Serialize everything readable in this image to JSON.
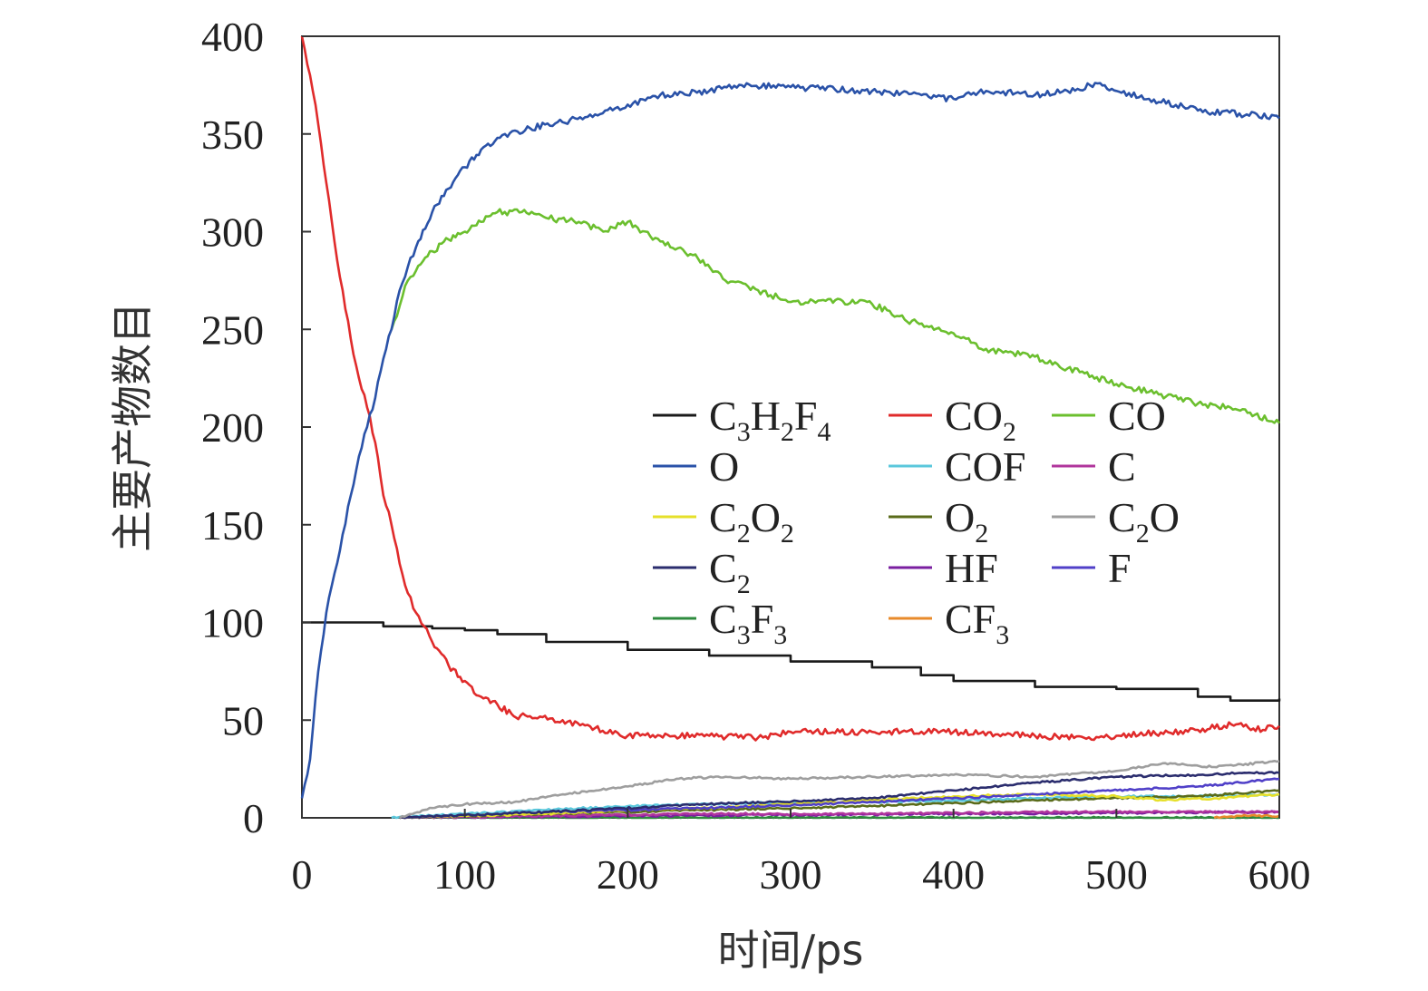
{
  "chart_data": {
    "type": "line",
    "xlabel": "时间/ps",
    "ylabel": "主要产物数目",
    "xlim": [
      0,
      600
    ],
    "ylim": [
      0,
      400
    ],
    "xticks": [
      "0",
      "100",
      "200",
      "300",
      "400",
      "500",
      "600"
    ],
    "yticks": [
      "0",
      "50",
      "100",
      "150",
      "200",
      "250",
      "300",
      "350",
      "400"
    ],
    "grid": false,
    "legend_placement": "center-right",
    "series": [
      {
        "name": "C3H2F4",
        "label_parts": [
          [
            "C",
            ""
          ],
          [
            "3",
            "sub"
          ],
          [
            "H",
            ""
          ],
          [
            "2",
            "sub"
          ],
          [
            "F",
            ""
          ],
          [
            "4",
            "sub"
          ]
        ],
        "color": "#1a1a1a",
        "step": true,
        "x": [
          0,
          20,
          50,
          80,
          100,
          120,
          150,
          200,
          250,
          300,
          350,
          380,
          400,
          450,
          500,
          550,
          570,
          600
        ],
        "y": [
          100,
          100,
          98,
          97,
          96,
          94,
          90,
          86,
          83,
          80,
          77,
          73,
          70,
          67,
          66,
          62,
          60,
          61
        ]
      },
      {
        "name": "CO2",
        "label_parts": [
          [
            "CO",
            ""
          ],
          [
            "2",
            "sub"
          ]
        ],
        "color": "#e02b2b",
        "x": [
          0,
          5,
          10,
          15,
          20,
          25,
          30,
          35,
          40,
          45,
          50,
          55,
          60,
          65,
          70,
          75,
          80,
          90,
          100,
          110,
          120,
          130,
          140,
          160,
          180,
          200,
          220,
          250,
          280,
          300,
          350,
          400,
          450,
          480,
          500,
          550,
          575,
          590,
          600
        ],
        "y": [
          400,
          380,
          355,
          325,
          295,
          270,
          245,
          225,
          210,
          192,
          165,
          150,
          130,
          115,
          105,
          98,
          90,
          78,
          70,
          62,
          58,
          52,
          52,
          50,
          46,
          42,
          42,
          42,
          41,
          44,
          44,
          44,
          42,
          41,
          42,
          45,
          48,
          45,
          47
        ]
      },
      {
        "name": "CO",
        "label_parts": [
          [
            "CO",
            ""
          ]
        ],
        "color": "#6bbf2e",
        "x": [
          55,
          60,
          65,
          70,
          80,
          90,
          100,
          110,
          120,
          135,
          150,
          170,
          185,
          200,
          220,
          240,
          260,
          280,
          300,
          320,
          350,
          370,
          400,
          420,
          450,
          470,
          500,
          520,
          550,
          570,
          600
        ],
        "y": [
          250,
          262,
          275,
          280,
          290,
          296,
          300,
          305,
          310,
          310,
          307,
          305,
          300,
          305,
          295,
          288,
          275,
          270,
          264,
          265,
          263,
          255,
          248,
          240,
          236,
          230,
          222,
          218,
          212,
          210,
          202
        ]
      },
      {
        "name": "O",
        "label_parts": [
          [
            "O",
            ""
          ]
        ],
        "color": "#2a52a8",
        "x": [
          0,
          5,
          10,
          15,
          20,
          25,
          30,
          35,
          40,
          45,
          50,
          55,
          60,
          65,
          70,
          80,
          90,
          100,
          110,
          120,
          140,
          160,
          180,
          200,
          220,
          250,
          270,
          300,
          350,
          400,
          420,
          450,
          470,
          490,
          500,
          520,
          550,
          580,
          600
        ],
        "y": [
          10,
          30,
          75,
          105,
          125,
          145,
          165,
          185,
          200,
          215,
          235,
          250,
          270,
          282,
          292,
          310,
          322,
          333,
          342,
          348,
          353,
          356,
          360,
          365,
          370,
          372,
          375,
          374,
          372,
          368,
          372,
          370,
          372,
          376,
          372,
          368,
          362,
          360,
          358
        ]
      },
      {
        "name": "COF",
        "label_parts": [
          [
            "COF",
            ""
          ]
        ],
        "color": "#5bc8dc",
        "x": [
          55,
          100,
          150,
          200,
          250,
          300,
          350,
          400,
          450,
          500,
          550,
          600
        ],
        "y": [
          0,
          2,
          4,
          6,
          7,
          8,
          8,
          9,
          10,
          11,
          11,
          12
        ]
      },
      {
        "name": "C",
        "label_parts": [
          [
            "C",
            ""
          ]
        ],
        "color": "#b0359c",
        "x": [
          60,
          150,
          250,
          350,
          450,
          550,
          600
        ],
        "y": [
          0,
          1,
          2,
          2,
          3,
          3,
          3
        ]
      },
      {
        "name": "C2O2",
        "label_parts": [
          [
            "C",
            ""
          ],
          [
            "2",
            "sub"
          ],
          [
            "O",
            ""
          ],
          [
            "2",
            "sub"
          ]
        ],
        "color": "#e6e02a",
        "x": [
          60,
          100,
          150,
          200,
          250,
          300,
          350,
          400,
          450,
          500,
          530,
          560,
          600
        ],
        "y": [
          0,
          1,
          2,
          4,
          5,
          7,
          9,
          11,
          12,
          11,
          9,
          10,
          12
        ]
      },
      {
        "name": "O2",
        "label_parts": [
          [
            "O",
            ""
          ],
          [
            "2",
            "sub"
          ]
        ],
        "color": "#5a6b1a",
        "x": [
          60,
          150,
          250,
          350,
          450,
          550,
          600
        ],
        "y": [
          0,
          2,
          4,
          6,
          9,
          11,
          14
        ]
      },
      {
        "name": "C2O",
        "label_parts": [
          [
            "C",
            ""
          ],
          [
            "2",
            "sub"
          ],
          [
            "O",
            ""
          ]
        ],
        "color": "#9e9e9e",
        "x": [
          60,
          80,
          100,
          130,
          160,
          200,
          230,
          260,
          300,
          350,
          400,
          450,
          500,
          530,
          560,
          600
        ],
        "y": [
          0,
          5,
          7,
          8,
          12,
          16,
          20,
          21,
          20,
          21,
          22,
          21,
          24,
          28,
          26,
          29
        ]
      },
      {
        "name": "C2",
        "label_parts": [
          [
            "C",
            ""
          ],
          [
            "2",
            "sub"
          ]
        ],
        "color": "#2b2d6e",
        "x": [
          60,
          150,
          250,
          350,
          400,
          450,
          500,
          550,
          580,
          600
        ],
        "y": [
          0,
          3,
          7,
          10,
          14,
          18,
          21,
          22,
          23,
          23
        ]
      },
      {
        "name": "HF",
        "label_parts": [
          [
            "HF",
            ""
          ]
        ],
        "color": "#7a1fa0",
        "x": [
          60,
          200,
          400,
          600
        ],
        "y": [
          0,
          1,
          2,
          3
        ]
      },
      {
        "name": "F",
        "label_parts": [
          [
            "F",
            ""
          ]
        ],
        "color": "#5040c8",
        "x": [
          60,
          150,
          250,
          350,
          450,
          550,
          600
        ],
        "y": [
          0,
          3,
          5,
          8,
          12,
          16,
          20
        ]
      },
      {
        "name": "C3F3",
        "label_parts": [
          [
            "C",
            ""
          ],
          [
            "3",
            "sub"
          ],
          [
            "F",
            ""
          ],
          [
            "3",
            "sub"
          ]
        ],
        "color": "#2e8b3e",
        "x": [
          60,
          300,
          600
        ],
        "y": [
          0,
          0,
          0
        ]
      },
      {
        "name": "CF3",
        "label_parts": [
          [
            "CF",
            ""
          ],
          [
            "3",
            "sub"
          ]
        ],
        "color": "#e88a2a",
        "x": [
          560,
          580,
          600
        ],
        "y": [
          0,
          1,
          1
        ]
      }
    ],
    "legend_order": [
      "C3H2F4",
      "CO2",
      "CO",
      "O",
      "COF",
      "C",
      "C2O2",
      "O2",
      "C2O",
      "C2",
      "HF",
      "F",
      "C3F3",
      "CF3"
    ]
  }
}
